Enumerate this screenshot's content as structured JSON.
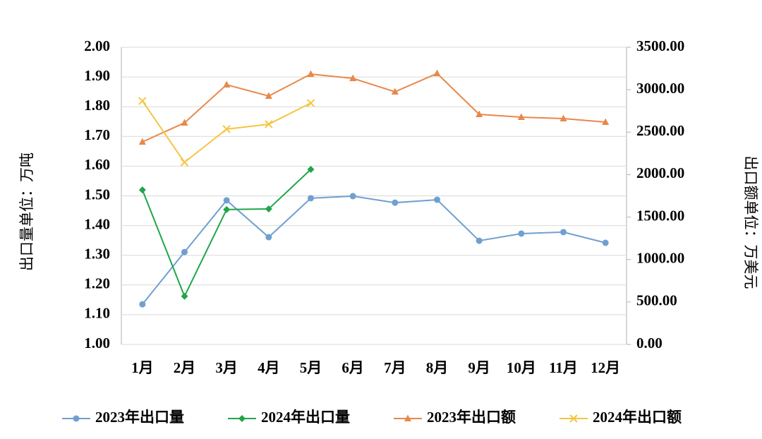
{
  "chart_data": {
    "type": "line",
    "categories": [
      "1月",
      "2月",
      "3月",
      "4月",
      "5月",
      "6月",
      "7月",
      "8月",
      "9月",
      "10月",
      "11月",
      "12月"
    ],
    "ylabel": "出口量单位：万吨",
    "y2label": "出口额单位：万美元",
    "ylim": [
      1.0,
      2.0
    ],
    "yticks": [
      {
        "value": 1.0,
        "label": "1.00"
      },
      {
        "value": 1.1,
        "label": "1.10"
      },
      {
        "value": 1.2,
        "label": "1.20"
      },
      {
        "value": 1.3,
        "label": "1.30"
      },
      {
        "value": 1.4,
        "label": "1.40"
      },
      {
        "value": 1.5,
        "label": "1.50"
      },
      {
        "value": 1.6,
        "label": "1.60"
      },
      {
        "value": 1.7,
        "label": "1.70"
      },
      {
        "value": 1.8,
        "label": "1.80"
      },
      {
        "value": 1.9,
        "label": "1.90"
      },
      {
        "value": 2.0,
        "label": "2.00"
      }
    ],
    "y2lim": [
      0,
      3500
    ],
    "y2ticks": [
      {
        "value": 0,
        "label": "0.00"
      },
      {
        "value": 500,
        "label": "500.00"
      },
      {
        "value": 1000,
        "label": "1000.00"
      },
      {
        "value": 1500,
        "label": "1500.00"
      },
      {
        "value": 2000,
        "label": "2000.00"
      },
      {
        "value": 2500,
        "label": "2500.00"
      },
      {
        "value": 3000,
        "label": "3000.00"
      },
      {
        "value": 3500,
        "label": "3500.00"
      }
    ],
    "grid": true,
    "legend": "bottom",
    "series": [
      {
        "name": "2023年出口量",
        "color": "#6fa0cf",
        "marker": "circle",
        "values": [
          1.135,
          1.311,
          1.485,
          1.361,
          1.492,
          1.499,
          1.477,
          1.487,
          1.349,
          1.373,
          1.378,
          1.342
        ]
      },
      {
        "name": "2024年出口量",
        "color": "#1fa64a",
        "marker": "diamond",
        "values": [
          1.52,
          1.162,
          1.454,
          1.456,
          1.589,
          null,
          null,
          null,
          null,
          null,
          null,
          null
        ]
      },
      {
        "name": "2023年出口额",
        "color": "#e8884a",
        "marker": "triangle",
        "axis": "y2",
        "values": [
          2386,
          2610,
          3059,
          2926,
          3184,
          3134,
          2976,
          3192,
          2710,
          2677,
          2660,
          2619
        ]
      },
      {
        "name": "2024年出口额",
        "color": "#f5c542",
        "marker": "x",
        "axis": "y2",
        "values": [
          2868,
          2145,
          2536,
          2594,
          2843,
          null,
          null,
          null,
          null,
          null,
          null,
          null
        ]
      }
    ]
  }
}
